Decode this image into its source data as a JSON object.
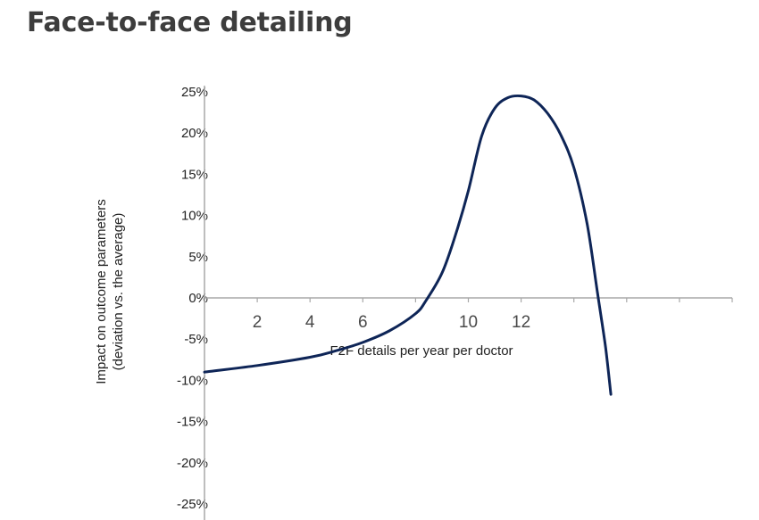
{
  "page": {
    "title": "Face-to-face detailing"
  },
  "chart_data": {
    "type": "line",
    "title": "",
    "xlabel": "F2F details per year per doctor",
    "ylabel": [
      "Impact on outcome parameters",
      "(deviation vs. the average)"
    ],
    "xlim": [
      0,
      20
    ],
    "ylim": [
      -0.25,
      0.25
    ],
    "x_tick_labels": [
      {
        "x": 2,
        "label": "2"
      },
      {
        "x": 4,
        "label": "4"
      },
      {
        "x": 6,
        "label": "6"
      },
      {
        "x": 10,
        "label": "10"
      },
      {
        "x": 12,
        "label": "12"
      }
    ],
    "x_minor_ticks": [
      2,
      4,
      6,
      8,
      10,
      12,
      14,
      16,
      18,
      20
    ],
    "y_ticks": [
      {
        "y": 0.25,
        "label": "25%"
      },
      {
        "y": 0.2,
        "label": "20%"
      },
      {
        "y": 0.15,
        "label": "15%"
      },
      {
        "y": 0.1,
        "label": "10%"
      },
      {
        "y": 0.05,
        "label": "5%"
      },
      {
        "y": 0.0,
        "label": "0%"
      },
      {
        "y": -0.05,
        "label": "-5%"
      },
      {
        "y": -0.1,
        "label": "-10%"
      },
      {
        "y": -0.15,
        "label": "-15%"
      },
      {
        "y": -0.2,
        "label": "-20%"
      },
      {
        "y": -0.25,
        "label": "-25%"
      }
    ],
    "grid": false,
    "legend": "none",
    "series": [
      {
        "color": "#0e2557",
        "x": [
          0,
          2,
          4,
          5,
          6,
          7,
          8,
          8.4,
          9,
          9.5,
          10,
          10.5,
          11,
          11.5,
          12,
          12.5,
          13,
          13.5,
          14,
          14.5,
          14.9,
          15.2,
          15.4
        ],
        "y": [
          -0.09,
          -0.082,
          -0.072,
          -0.064,
          -0.054,
          -0.04,
          -0.019,
          -0.003,
          0.03,
          0.075,
          0.13,
          0.196,
          0.23,
          0.243,
          0.245,
          0.24,
          0.224,
          0.198,
          0.158,
          0.09,
          0.005,
          -0.06,
          -0.117
        ]
      }
    ]
  }
}
